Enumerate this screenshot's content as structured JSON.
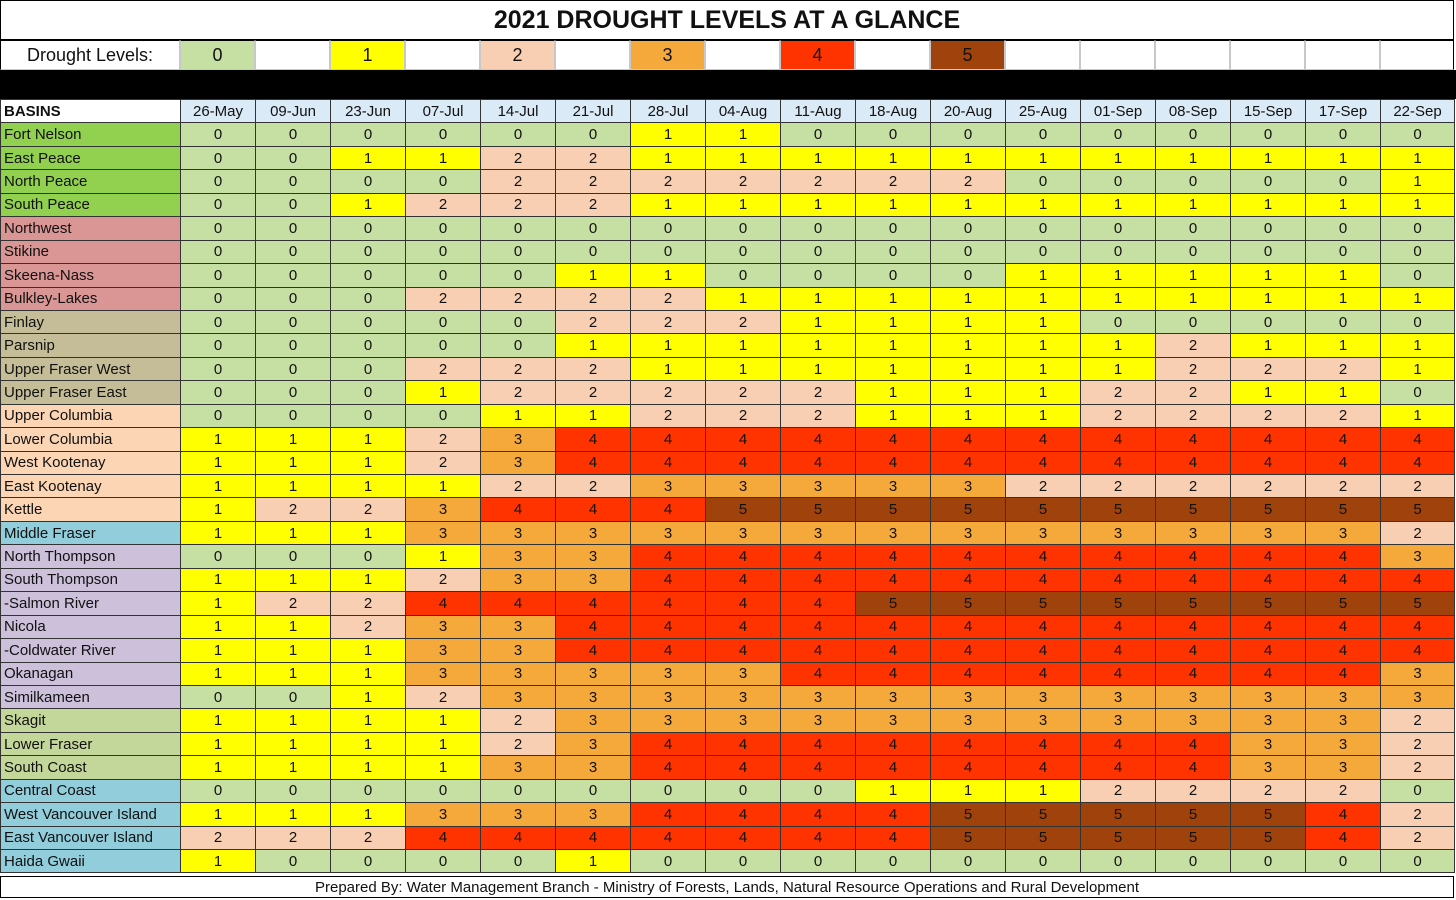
{
  "title": "2021 DROUGHT LEVELS AT A GLANCE",
  "legend": {
    "label": "Drought Levels:",
    "levels": [
      "0",
      "1",
      "2",
      "3",
      "4",
      "5"
    ]
  },
  "level_colors": [
    "#c6dfa3",
    "#ffff00",
    "#f8cfb2",
    "#f6a93b",
    "#ff3300",
    "#a0420c"
  ],
  "group_colors": {
    "green": "#92d050",
    "rose": "#da9694",
    "tan": "#c4bd97",
    "peach": "#fcd5b4",
    "teal": "#92cddc",
    "lavender": "#ccc0da",
    "sage": "#c4d79b"
  },
  "table": {
    "header": "BASINS",
    "dates": [
      "26-May",
      "09-Jun",
      "23-Jun",
      "07-Jul",
      "14-Jul",
      "21-Jul",
      "28-Jul",
      "04-Aug",
      "11-Aug",
      "18-Aug",
      "20-Aug",
      "25-Aug",
      "01-Sep",
      "08-Sep",
      "15-Sep",
      "17-Sep",
      "22-Sep"
    ],
    "rows": [
      {
        "name": "Fort Nelson",
        "group": "green",
        "levels": [
          0,
          0,
          0,
          0,
          0,
          0,
          1,
          1,
          0,
          0,
          0,
          0,
          0,
          0,
          0,
          0,
          0
        ]
      },
      {
        "name": "East Peace",
        "group": "green",
        "levels": [
          0,
          0,
          1,
          1,
          2,
          2,
          1,
          1,
          1,
          1,
          1,
          1,
          1,
          1,
          1,
          1,
          1
        ]
      },
      {
        "name": "North Peace",
        "group": "green",
        "levels": [
          0,
          0,
          0,
          0,
          2,
          2,
          2,
          2,
          2,
          2,
          2,
          0,
          0,
          0,
          0,
          0,
          1
        ]
      },
      {
        "name": "South Peace",
        "group": "green",
        "levels": [
          0,
          0,
          1,
          2,
          2,
          2,
          1,
          1,
          1,
          1,
          1,
          1,
          1,
          1,
          1,
          1,
          1
        ]
      },
      {
        "name": "Northwest",
        "group": "rose",
        "levels": [
          0,
          0,
          0,
          0,
          0,
          0,
          0,
          0,
          0,
          0,
          0,
          0,
          0,
          0,
          0,
          0,
          0
        ]
      },
      {
        "name": "Stikine",
        "group": "rose",
        "levels": [
          0,
          0,
          0,
          0,
          0,
          0,
          0,
          0,
          0,
          0,
          0,
          0,
          0,
          0,
          0,
          0,
          0
        ]
      },
      {
        "name": "Skeena-Nass",
        "group": "rose",
        "levels": [
          0,
          0,
          0,
          0,
          0,
          1,
          1,
          0,
          0,
          0,
          0,
          1,
          1,
          1,
          1,
          1,
          0
        ]
      },
      {
        "name": "Bulkley-Lakes",
        "group": "rose",
        "levels": [
          0,
          0,
          0,
          2,
          2,
          2,
          2,
          1,
          1,
          1,
          1,
          1,
          1,
          1,
          1,
          1,
          1
        ]
      },
      {
        "name": "Finlay",
        "group": "tan",
        "levels": [
          0,
          0,
          0,
          0,
          0,
          2,
          2,
          2,
          1,
          1,
          1,
          1,
          0,
          0,
          0,
          0,
          0
        ]
      },
      {
        "name": "Parsnip",
        "group": "tan",
        "levels": [
          0,
          0,
          0,
          0,
          0,
          1,
          1,
          1,
          1,
          1,
          1,
          1,
          1,
          2,
          1,
          1,
          1
        ]
      },
      {
        "name": "Upper Fraser West",
        "group": "tan",
        "levels": [
          0,
          0,
          0,
          2,
          2,
          2,
          1,
          1,
          1,
          1,
          1,
          1,
          1,
          2,
          2,
          2,
          1
        ]
      },
      {
        "name": "Upper Fraser East",
        "group": "tan",
        "levels": [
          0,
          0,
          0,
          1,
          2,
          2,
          2,
          2,
          2,
          1,
          1,
          1,
          2,
          2,
          1,
          1,
          0
        ]
      },
      {
        "name": "Upper Columbia",
        "group": "peach",
        "levels": [
          0,
          0,
          0,
          0,
          1,
          1,
          2,
          2,
          2,
          1,
          1,
          1,
          2,
          2,
          2,
          2,
          1
        ]
      },
      {
        "name": "Lower Columbia",
        "group": "peach",
        "levels": [
          1,
          1,
          1,
          2,
          3,
          4,
          4,
          4,
          4,
          4,
          4,
          4,
          4,
          4,
          4,
          4,
          4
        ]
      },
      {
        "name": "West Kootenay",
        "group": "peach",
        "levels": [
          1,
          1,
          1,
          2,
          3,
          4,
          4,
          4,
          4,
          4,
          4,
          4,
          4,
          4,
          4,
          4,
          4
        ]
      },
      {
        "name": "East Kootenay",
        "group": "peach",
        "levels": [
          1,
          1,
          1,
          1,
          2,
          2,
          3,
          3,
          3,
          3,
          3,
          2,
          2,
          2,
          2,
          2,
          2
        ]
      },
      {
        "name": "Kettle",
        "group": "peach",
        "levels": [
          1,
          2,
          2,
          3,
          4,
          4,
          4,
          5,
          5,
          5,
          5,
          5,
          5,
          5,
          5,
          5,
          5
        ]
      },
      {
        "name": "Middle Fraser",
        "group": "teal",
        "levels": [
          1,
          1,
          1,
          3,
          3,
          3,
          3,
          3,
          3,
          3,
          3,
          3,
          3,
          3,
          3,
          3,
          2
        ]
      },
      {
        "name": "North Thompson",
        "group": "lavender",
        "levels": [
          0,
          0,
          0,
          1,
          3,
          3,
          4,
          4,
          4,
          4,
          4,
          4,
          4,
          4,
          4,
          4,
          3
        ]
      },
      {
        "name": "South Thompson",
        "group": "lavender",
        "levels": [
          1,
          1,
          1,
          2,
          3,
          3,
          4,
          4,
          4,
          4,
          4,
          4,
          4,
          4,
          4,
          4,
          4
        ]
      },
      {
        "name": " -Salmon River",
        "group": "lavender",
        "levels": [
          1,
          2,
          2,
          4,
          4,
          4,
          4,
          4,
          4,
          5,
          5,
          5,
          5,
          5,
          5,
          5,
          5
        ]
      },
      {
        "name": "Nicola",
        "group": "lavender",
        "levels": [
          1,
          1,
          2,
          3,
          3,
          4,
          4,
          4,
          4,
          4,
          4,
          4,
          4,
          4,
          4,
          4,
          4
        ]
      },
      {
        "name": " -Coldwater River",
        "group": "lavender",
        "levels": [
          1,
          1,
          1,
          3,
          3,
          4,
          4,
          4,
          4,
          4,
          4,
          4,
          4,
          4,
          4,
          4,
          4
        ]
      },
      {
        "name": "Okanagan",
        "group": "lavender",
        "levels": [
          1,
          1,
          1,
          3,
          3,
          3,
          3,
          3,
          4,
          4,
          4,
          4,
          4,
          4,
          4,
          4,
          3
        ]
      },
      {
        "name": "Similkameen",
        "group": "lavender",
        "levels": [
          0,
          0,
          1,
          2,
          3,
          3,
          3,
          3,
          3,
          3,
          3,
          3,
          3,
          3,
          3,
          3,
          3
        ]
      },
      {
        "name": "Skagit",
        "group": "sage",
        "levels": [
          1,
          1,
          1,
          1,
          2,
          3,
          3,
          3,
          3,
          3,
          3,
          3,
          3,
          3,
          3,
          3,
          2
        ]
      },
      {
        "name": "Lower Fraser",
        "group": "sage",
        "levels": [
          1,
          1,
          1,
          1,
          2,
          3,
          4,
          4,
          4,
          4,
          4,
          4,
          4,
          4,
          3,
          3,
          2
        ]
      },
      {
        "name": "South Coast",
        "group": "sage",
        "levels": [
          1,
          1,
          1,
          1,
          3,
          3,
          4,
          4,
          4,
          4,
          4,
          4,
          4,
          4,
          3,
          3,
          2
        ]
      },
      {
        "name": "Central Coast",
        "group": "teal",
        "levels": [
          0,
          0,
          0,
          0,
          0,
          0,
          0,
          0,
          0,
          1,
          1,
          1,
          2,
          2,
          2,
          2,
          0
        ]
      },
      {
        "name": "West Vancouver Island",
        "group": "teal",
        "levels": [
          1,
          1,
          1,
          3,
          3,
          3,
          4,
          4,
          4,
          4,
          5,
          5,
          5,
          5,
          5,
          4,
          2
        ]
      },
      {
        "name": "East Vancouver Island",
        "group": "teal",
        "levels": [
          2,
          2,
          2,
          4,
          4,
          4,
          4,
          4,
          4,
          4,
          5,
          5,
          5,
          5,
          5,
          4,
          2
        ]
      },
      {
        "name": "Haida Gwaii",
        "group": "teal",
        "levels": [
          1,
          0,
          0,
          0,
          0,
          1,
          0,
          0,
          0,
          0,
          0,
          0,
          0,
          0,
          0,
          0,
          0
        ]
      }
    ]
  },
  "footer": "Prepared By:  Water Management Branch - Ministry of Forests, Lands, Natural Resource Operations and Rural Development"
}
